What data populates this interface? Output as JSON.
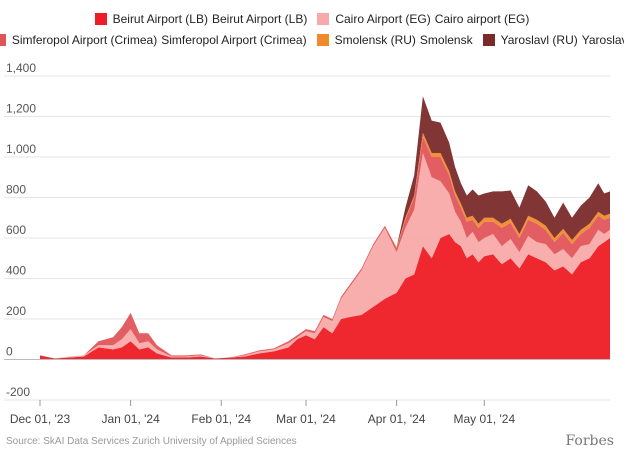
{
  "chart_data": {
    "type": "area",
    "stacked": true,
    "legend": [
      {
        "id": "beirut",
        "label": "Beirut Airport (LB)",
        "label2": "Beirut Airport (LB)",
        "color": "#ee1c24"
      },
      {
        "id": "cairo",
        "label": "Cairo Airport (EG)",
        "label2": "Cairo airport (EG)",
        "color": "#f7aaa9"
      },
      {
        "id": "simferopol",
        "label": "Simferopol Airport (Crimea)",
        "label2": "Simferopol Airport (Crimea)",
        "color": "#e0555a"
      },
      {
        "id": "smolensk",
        "label": "Smolensk (RU)",
        "label2": "Smolensk",
        "color": "#f08a2b"
      },
      {
        "id": "yaroslavl",
        "label": "Yaroslavl (RU)",
        "label2": "Yaroslavl",
        "color": "#7a2a2a"
      }
    ],
    "y_ticks": [
      "1,400",
      "1,200",
      "1,000",
      "800",
      "600",
      "400",
      "200",
      "0",
      "-200"
    ],
    "y_tick_values": [
      1400,
      1200,
      1000,
      800,
      600,
      400,
      200,
      0,
      -200
    ],
    "ylim": [
      -200,
      1400
    ],
    "x_ticks": [
      "Dec 01, '23",
      "Jan 01, '24",
      "Feb 01, '24",
      "Mar 01, '24",
      "Apr 01, '24",
      "May 01, '24"
    ],
    "x_tick_days": [
      0,
      31,
      62,
      91,
      122,
      152
    ],
    "x_range_days": [
      0,
      195
    ],
    "series_values": {
      "x_days": [
        0,
        5,
        10,
        15,
        20,
        25,
        28,
        31,
        34,
        37,
        40,
        45,
        50,
        55,
        60,
        65,
        70,
        75,
        80,
        85,
        88,
        91,
        94,
        97,
        100,
        103,
        106,
        110,
        114,
        118,
        122,
        125,
        128,
        131,
        134,
        137,
        140,
        142,
        144,
        146,
        148,
        150,
        152,
        155,
        158,
        161,
        164,
        167,
        170,
        173,
        176,
        179,
        182,
        185,
        188,
        191,
        193,
        195
      ],
      "beirut": [
        20,
        5,
        10,
        15,
        60,
        50,
        60,
        90,
        50,
        60,
        30,
        10,
        10,
        15,
        5,
        10,
        15,
        30,
        40,
        60,
        100,
        120,
        100,
        160,
        130,
        200,
        210,
        220,
        260,
        300,
        330,
        400,
        420,
        560,
        500,
        600,
        620,
        580,
        560,
        500,
        520,
        480,
        510,
        520,
        470,
        500,
        450,
        520,
        500,
        480,
        440,
        460,
        420,
        480,
        500,
        560,
        580,
        600
      ],
      "cairo": [
        0,
        0,
        5,
        5,
        10,
        20,
        40,
        60,
        30,
        30,
        20,
        5,
        5,
        5,
        0,
        0,
        5,
        10,
        10,
        20,
        10,
        20,
        30,
        50,
        60,
        100,
        150,
        220,
        300,
        350,
        200,
        250,
        320,
        460,
        400,
        280,
        200,
        150,
        120,
        100,
        110,
        100,
        90,
        100,
        90,
        95,
        80,
        90,
        80,
        90,
        80,
        85,
        80,
        80,
        70,
        80,
        40,
        40
      ],
      "simferopol": [
        0,
        0,
        0,
        0,
        20,
        40,
        60,
        80,
        50,
        40,
        20,
        5,
        5,
        5,
        0,
        0,
        5,
        5,
        5,
        10,
        10,
        10,
        10,
        10,
        10,
        10,
        10,
        10,
        10,
        10,
        20,
        40,
        60,
        80,
        100,
        120,
        90,
        80,
        70,
        80,
        60,
        70,
        80,
        60,
        90,
        80,
        70,
        80,
        90,
        70,
        60,
        80,
        70,
        60,
        80,
        70,
        70,
        60
      ],
      "smolensk": [
        0,
        0,
        0,
        0,
        0,
        0,
        0,
        0,
        0,
        0,
        0,
        0,
        0,
        0,
        0,
        0,
        0,
        0,
        0,
        0,
        0,
        0,
        0,
        0,
        0,
        0,
        0,
        0,
        0,
        0,
        5,
        10,
        10,
        20,
        20,
        20,
        20,
        20,
        20,
        20,
        20,
        20,
        20,
        20,
        20,
        20,
        20,
        20,
        20,
        20,
        20,
        20,
        20,
        20,
        20,
        20,
        20,
        20
      ],
      "yaroslavl": [
        0,
        0,
        0,
        0,
        0,
        0,
        0,
        0,
        0,
        0,
        0,
        0,
        0,
        0,
        0,
        0,
        0,
        0,
        0,
        0,
        0,
        0,
        0,
        0,
        0,
        0,
        0,
        0,
        0,
        0,
        0,
        50,
        100,
        180,
        160,
        150,
        140,
        120,
        100,
        110,
        130,
        140,
        120,
        130,
        160,
        140,
        130,
        150,
        140,
        120,
        100,
        130,
        110,
        120,
        130,
        140,
        110,
        110
      ]
    },
    "source": "Source: SkAI Data Services Zurich University of Applied Sciences",
    "brand": "Forbes"
  }
}
